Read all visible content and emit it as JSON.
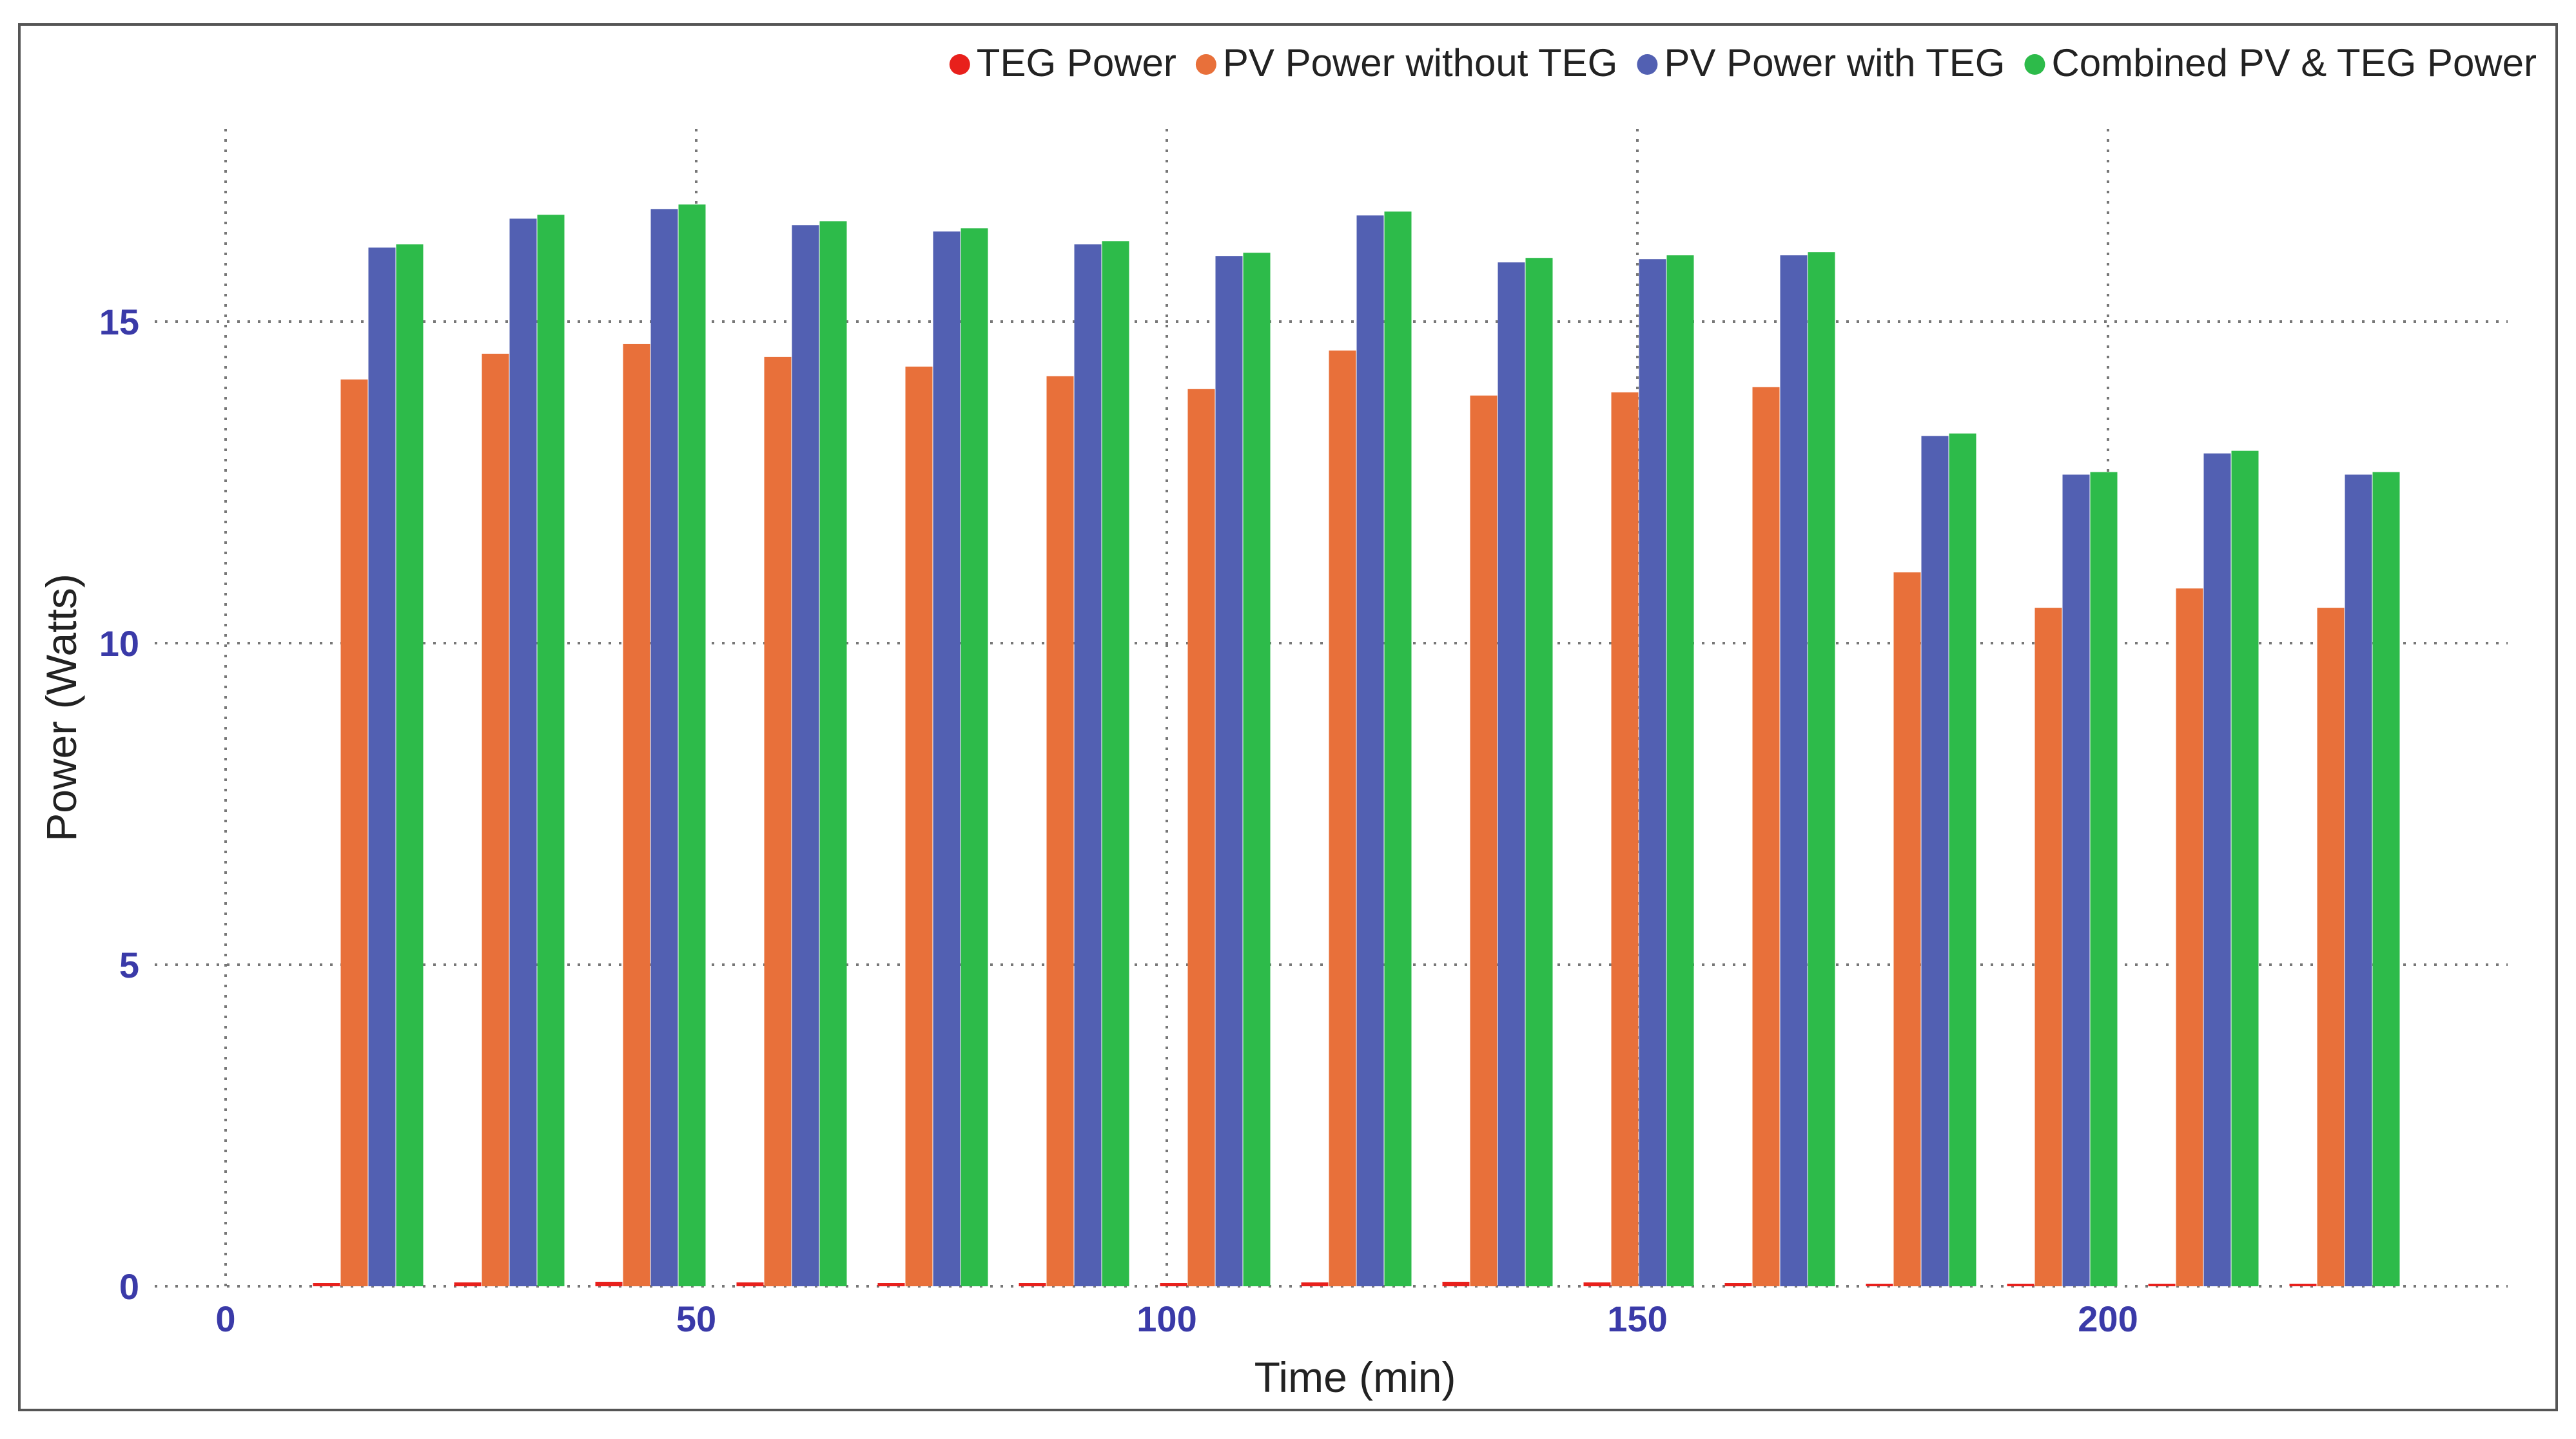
{
  "colors": {
    "teg": "#e8201c",
    "pv_without": "#e8703a",
    "pv_with": "#5260b2",
    "combined": "#2dbb4a",
    "tick_text": "#3a3aa8",
    "axis_label": "#222222",
    "grid": "#777777",
    "frame": "#555555"
  },
  "chart_data": {
    "type": "bar",
    "xlabel": "Time (min)",
    "ylabel": "Power (Watts)",
    "xlim": [
      0,
      245
    ],
    "ylim": [
      0,
      17.5
    ],
    "xticks": [
      0,
      50,
      100,
      150,
      200
    ],
    "yticks": [
      0,
      5,
      10,
      15
    ],
    "xtick_labels": [
      "0",
      "50",
      "100",
      "150",
      "200"
    ],
    "ytick_labels": [
      "0",
      "5",
      "10",
      "15"
    ],
    "grid": true,
    "legend_position": "top-right",
    "x": [
      15,
      30,
      45,
      60,
      75,
      90,
      105,
      120,
      135,
      150,
      165,
      180,
      195,
      210,
      225
    ],
    "series": [
      {
        "name": "TEG Power",
        "color_key": "teg",
        "values": [
          0.05,
          0.06,
          0.07,
          0.06,
          0.05,
          0.05,
          0.05,
          0.06,
          0.07,
          0.06,
          0.05,
          0.04,
          0.04,
          0.04,
          0.04
        ]
      },
      {
        "name": "PV Power without TEG",
        "color_key": "pv_without",
        "values": [
          14.1,
          14.5,
          14.65,
          14.45,
          14.3,
          14.15,
          13.95,
          14.55,
          13.85,
          13.9,
          13.98,
          11.1,
          10.55,
          10.85,
          10.55
        ]
      },
      {
        "name": "PV Power with TEG",
        "color_key": "pv_with",
        "values": [
          16.15,
          16.6,
          16.75,
          16.5,
          16.4,
          16.2,
          16.02,
          16.65,
          15.92,
          15.97,
          16.03,
          13.22,
          12.62,
          12.95,
          12.62
        ]
      },
      {
        "name": "Combined PV & TEG Power",
        "color_key": "combined",
        "values": [
          16.2,
          16.66,
          16.82,
          16.56,
          16.45,
          16.25,
          16.07,
          16.71,
          15.99,
          16.03,
          16.08,
          13.26,
          12.66,
          12.99,
          12.66
        ]
      }
    ]
  }
}
